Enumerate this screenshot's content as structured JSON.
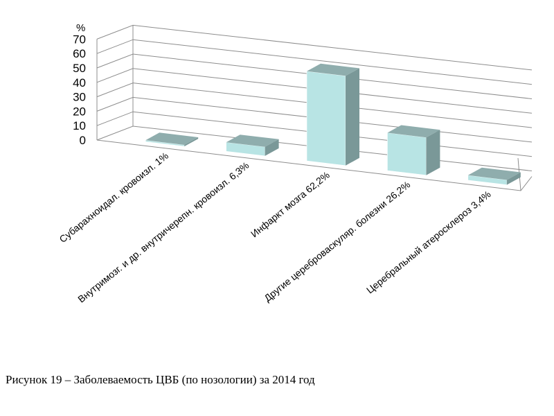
{
  "chart_data": {
    "type": "bar",
    "unit": "%",
    "categories": [
      "Субарахноидал. кровоизл. 1%",
      "Внутримозг. и др. внутричерепн. кровоизл. 6,3%",
      "Инфаркт мозга 62,2%",
      "Другие цереброваскуляр. болезни 26,2%",
      "Церебральный атеросклероз 3,4%"
    ],
    "values": [
      1,
      6.3,
      62.2,
      26.2,
      3.4
    ],
    "ylim": [
      0,
      70
    ],
    "yticks": [
      0,
      10,
      20,
      30,
      40,
      50,
      60,
      70
    ],
    "grid": true,
    "legend": "none",
    "colors": {
      "front": "#b8e4e4",
      "top": "#8fadad",
      "side": "#7a9898",
      "grid": "#8c8c8c"
    }
  },
  "caption": "Рисунок 19 – Заболеваемость ЦВБ (по нозологии) за 2014 год"
}
